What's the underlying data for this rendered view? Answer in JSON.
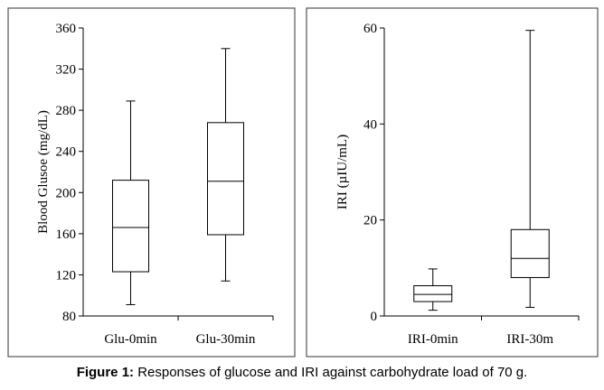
{
  "caption": {
    "label": "Figure 1:",
    "text": " Responses of glucose and IRI against carbohydrate load of 70 g."
  },
  "chart_data": [
    {
      "type": "boxplot",
      "title": "",
      "xlabel": "",
      "ylabel": "Blood Glusoe (mg/dL)",
      "ylim": [
        80,
        360
      ],
      "yticks": [
        80,
        120,
        160,
        200,
        240,
        280,
        320,
        360
      ],
      "grid": false,
      "categories": [
        "Glu-0min",
        "Glu-30min"
      ],
      "boxes": [
        {
          "name": "Glu-0min",
          "min": 91,
          "q1": 123,
          "median": 166,
          "q3": 212,
          "max": 289
        },
        {
          "name": "Glu-30min",
          "min": 114,
          "q1": 159,
          "median": 211,
          "q3": 268,
          "max": 340
        }
      ]
    },
    {
      "type": "boxplot",
      "title": "",
      "xlabel": "",
      "ylabel": "IRI (µIU/mL)",
      "ylim": [
        0,
        60
      ],
      "yticks": [
        0,
        20,
        40,
        60
      ],
      "grid": false,
      "categories": [
        "IRI-0min",
        "IRI-30m"
      ],
      "boxes": [
        {
          "name": "IRI-0min",
          "min": 1.2,
          "q1": 3.0,
          "median": 4.5,
          "q3": 6.3,
          "max": 9.8
        },
        {
          "name": "IRI-30m",
          "min": 1.8,
          "q1": 8.0,
          "median": 12.0,
          "q3": 18.0,
          "max": 59.5
        }
      ]
    }
  ]
}
